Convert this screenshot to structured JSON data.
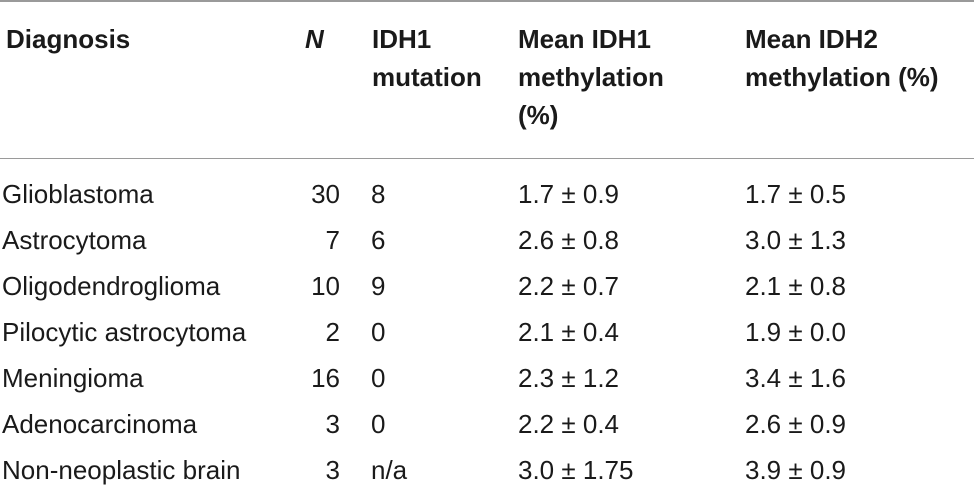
{
  "table": {
    "headers": {
      "diagnosis": "Diagnosis",
      "n": "N",
      "mutation": "IDH1\nmutation",
      "mean_idh1": "Mean IDH1\nmethylation\n(%)",
      "mean_idh2": "Mean IDH2\nmethylation (%)"
    },
    "rows": [
      {
        "diagnosis": "Glioblastoma",
        "n": "30",
        "mutation": "8",
        "mean_idh1": "1.7 ± 0.9",
        "mean_idh2": "1.7 ± 0.5"
      },
      {
        "diagnosis": "Astrocytoma",
        "n": "7",
        "mutation": "6",
        "mean_idh1": "2.6 ± 0.8",
        "mean_idh2": "3.0 ± 1.3"
      },
      {
        "diagnosis": "Oligodendroglioma",
        "n": "10",
        "mutation": "9",
        "mean_idh1": "2.2 ± 0.7",
        "mean_idh2": "2.1 ± 0.8"
      },
      {
        "diagnosis": "Pilocytic astrocytoma",
        "n": "2",
        "mutation": "0",
        "mean_idh1": "2.1 ± 0.4",
        "mean_idh2": "1.9 ± 0.0"
      },
      {
        "diagnosis": "Meningioma",
        "n": "16",
        "mutation": "0",
        "mean_idh1": "2.3 ± 1.2",
        "mean_idh2": "3.4 ± 1.6"
      },
      {
        "diagnosis": "Adenocarcinoma",
        "n": "3",
        "mutation": "0",
        "mean_idh1": "2.2 ± 0.4",
        "mean_idh2": "2.6 ± 0.9"
      },
      {
        "diagnosis": "Non-neoplastic brain",
        "n": "3",
        "mutation": "n/a",
        "mean_idh1": "3.0 ± 1.75",
        "mean_idh2": "3.9 ± 0.9"
      }
    ]
  }
}
